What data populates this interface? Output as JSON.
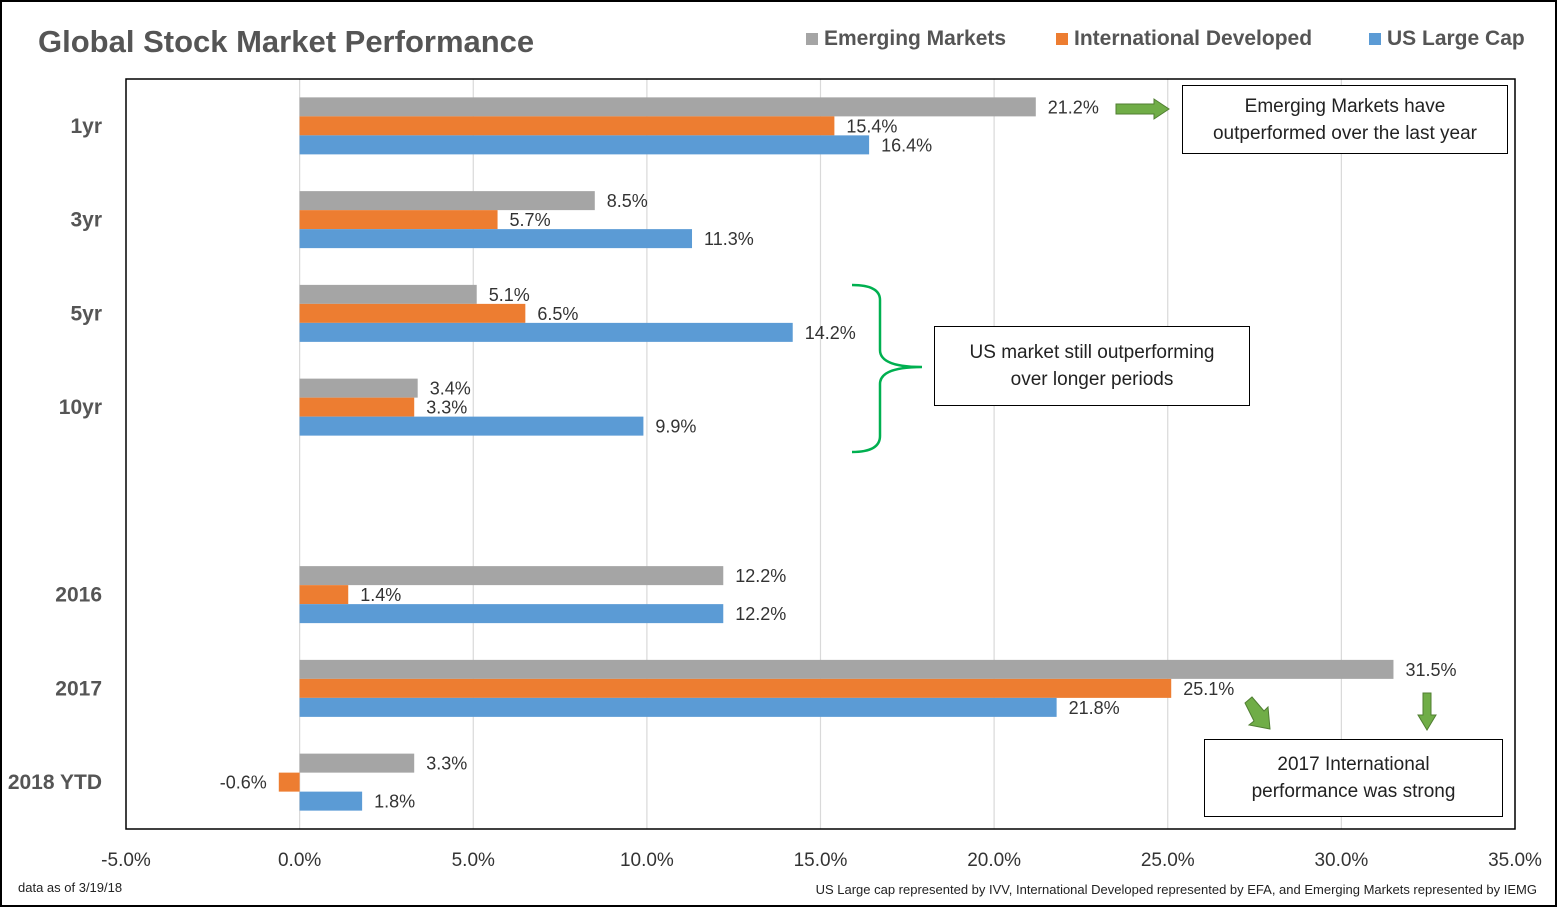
{
  "title": "Global Stock Market Performance",
  "legend": [
    {
      "label": "Emerging Markets",
      "color": "#A5A5A5"
    },
    {
      "label": "International Developed",
      "color": "#ED7D31"
    },
    {
      "label": "US Large Cap",
      "color": "#5B9BD5"
    }
  ],
  "callouts": {
    "emerging": "Emerging Markets have outperformed over the last year",
    "us": "US market still outperforming over longer periods",
    "intl": "2017 International performance was strong"
  },
  "callout_lines": {
    "emerging": [
      "Emerging Markets have",
      "outperformed over the last year"
    ],
    "us": [
      "US market still outperforming",
      "over longer periods"
    ],
    "intl": [
      "2017 International",
      "performance was strong"
    ]
  },
  "footnotes": {
    "left": "data as of 3/19/18",
    "right": "US Large cap represented by IVV, International Developed represented by EFA, and Emerging Markets represented by IEMG"
  },
  "chart_data": {
    "type": "bar",
    "orientation": "horizontal",
    "title": "Global Stock Market Performance",
    "categories": [
      "1yr",
      "3yr",
      "5yr",
      "10yr",
      "",
      "2016",
      "2017",
      "2018 YTD"
    ],
    "series": [
      {
        "name": "Emerging Markets",
        "color": "#A5A5A5",
        "values": [
          21.2,
          8.5,
          5.1,
          3.4,
          null,
          12.2,
          31.5,
          3.3
        ]
      },
      {
        "name": "International Developed",
        "color": "#ED7D31",
        "values": [
          15.4,
          5.7,
          6.5,
          3.3,
          null,
          1.4,
          25.1,
          -0.6
        ]
      },
      {
        "name": "US Large Cap",
        "color": "#5B9BD5",
        "values": [
          16.4,
          11.3,
          14.2,
          9.9,
          null,
          12.2,
          21.8,
          1.8
        ]
      }
    ],
    "xlim": [
      -5,
      35
    ],
    "xticks": [
      -5,
      0,
      5,
      10,
      15,
      20,
      25,
      30,
      35
    ],
    "tick_labels": [
      "-5.0%",
      "0.0%",
      "5.0%",
      "10.0%",
      "15.0%",
      "20.0%",
      "25.0%",
      "30.0%",
      "35.0%"
    ],
    "grid": "vertical",
    "legend_position": "top-right",
    "value_suffix": "%"
  }
}
